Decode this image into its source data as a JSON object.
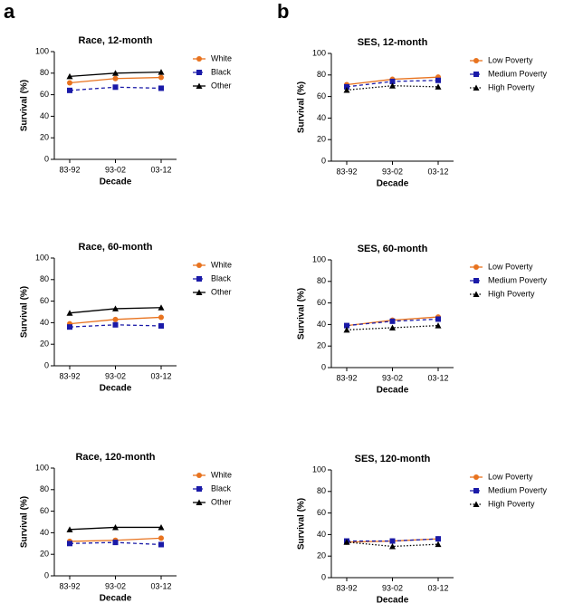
{
  "panel_labels": [
    "a",
    "b"
  ],
  "chart_data": [
    {
      "type": "line",
      "title": "Race, 12-month",
      "xlabel": "Decade",
      "ylabel": "Survival (%)",
      "categories": [
        "83-92",
        "93-02",
        "03-12"
      ],
      "ylim": [
        0,
        100
      ],
      "yticks": [
        0,
        20,
        40,
        60,
        80,
        100
      ],
      "series": [
        {
          "name": "White",
          "color": "#e8731f",
          "dash": "solid",
          "marker": "circle",
          "values": [
            71,
            75,
            76
          ]
        },
        {
          "name": "Black",
          "color": "#1a1aa8",
          "dash": "dashed",
          "marker": "square",
          "values": [
            64,
            67,
            66
          ]
        },
        {
          "name": "Other",
          "color": "#000000",
          "dash": "solid",
          "marker": "triangle",
          "values": [
            77,
            80,
            81
          ]
        }
      ]
    },
    {
      "type": "line",
      "title": "SES, 12-month",
      "xlabel": "Decade",
      "ylabel": "Survival (%)",
      "categories": [
        "83-92",
        "93-02",
        "03-12"
      ],
      "ylim": [
        0,
        100
      ],
      "yticks": [
        0,
        20,
        40,
        60,
        80,
        100
      ],
      "series": [
        {
          "name": "Low Poverty",
          "color": "#e8731f",
          "dash": "solid",
          "marker": "circle",
          "values": [
            71,
            76,
            78
          ]
        },
        {
          "name": "Medium Poverty",
          "color": "#1a1aa8",
          "dash": "dashed",
          "marker": "square",
          "values": [
            69,
            74,
            75
          ]
        },
        {
          "name": "High Poverty",
          "color": "#000000",
          "dash": "dotted",
          "marker": "triangle",
          "values": [
            66,
            70,
            69
          ]
        }
      ]
    },
    {
      "type": "line",
      "title": "Race, 60-month",
      "xlabel": "Decade",
      "ylabel": "Survival (%)",
      "categories": [
        "83-92",
        "93-02",
        "03-12"
      ],
      "ylim": [
        0,
        100
      ],
      "yticks": [
        0,
        20,
        40,
        60,
        80,
        100
      ],
      "series": [
        {
          "name": "White",
          "color": "#e8731f",
          "dash": "solid",
          "marker": "circle",
          "values": [
            39,
            43,
            45
          ]
        },
        {
          "name": "Black",
          "color": "#1a1aa8",
          "dash": "dashed",
          "marker": "square",
          "values": [
            36,
            38,
            37
          ]
        },
        {
          "name": "Other",
          "color": "#000000",
          "dash": "solid",
          "marker": "triangle",
          "values": [
            49,
            53,
            54
          ]
        }
      ]
    },
    {
      "type": "line",
      "title": "SES, 60-month",
      "xlabel": "Decade",
      "ylabel": "Survival (%)",
      "categories": [
        "83-92",
        "93-02",
        "03-12"
      ],
      "ylim": [
        0,
        100
      ],
      "yticks": [
        0,
        20,
        40,
        60,
        80,
        100
      ],
      "series": [
        {
          "name": "Low Poverty",
          "color": "#e8731f",
          "dash": "solid",
          "marker": "circle",
          "values": [
            39,
            44,
            47
          ]
        },
        {
          "name": "Medium Poverty",
          "color": "#1a1aa8",
          "dash": "dashed",
          "marker": "square",
          "values": [
            39,
            43,
            45
          ]
        },
        {
          "name": "High Poverty",
          "color": "#000000",
          "dash": "dotted",
          "marker": "triangle",
          "values": [
            35,
            37,
            39
          ]
        }
      ]
    },
    {
      "type": "line",
      "title": "Race, 120-month",
      "xlabel": "Decade",
      "ylabel": "Survival (%)",
      "categories": [
        "83-92",
        "93-02",
        "03-12"
      ],
      "ylim": [
        0,
        100
      ],
      "yticks": [
        0,
        20,
        40,
        60,
        80,
        100
      ],
      "series": [
        {
          "name": "White",
          "color": "#e8731f",
          "dash": "solid",
          "marker": "circle",
          "values": [
            32,
            33,
            35
          ]
        },
        {
          "name": "Black",
          "color": "#1a1aa8",
          "dash": "dashed",
          "marker": "square",
          "values": [
            30,
            31,
            29
          ]
        },
        {
          "name": "Other",
          "color": "#000000",
          "dash": "solid",
          "marker": "triangle",
          "values": [
            43,
            45,
            45
          ]
        }
      ]
    },
    {
      "type": "line",
      "title": "SES, 120-month",
      "xlabel": "Decade",
      "ylabel": "Survival (%)",
      "categories": [
        "83-92",
        "93-02",
        "03-12"
      ],
      "ylim": [
        0,
        100
      ],
      "yticks": [
        0,
        20,
        40,
        60,
        80,
        100
      ],
      "series": [
        {
          "name": "Low Poverty",
          "color": "#e8731f",
          "dash": "solid",
          "marker": "circle",
          "values": [
            33,
            34,
            36
          ]
        },
        {
          "name": "Medium Poverty",
          "color": "#1a1aa8",
          "dash": "dashed",
          "marker": "square",
          "values": [
            34,
            34,
            36
          ]
        },
        {
          "name": "High Poverty",
          "color": "#000000",
          "dash": "dotted",
          "marker": "triangle",
          "values": [
            33,
            29,
            31
          ]
        }
      ]
    }
  ]
}
